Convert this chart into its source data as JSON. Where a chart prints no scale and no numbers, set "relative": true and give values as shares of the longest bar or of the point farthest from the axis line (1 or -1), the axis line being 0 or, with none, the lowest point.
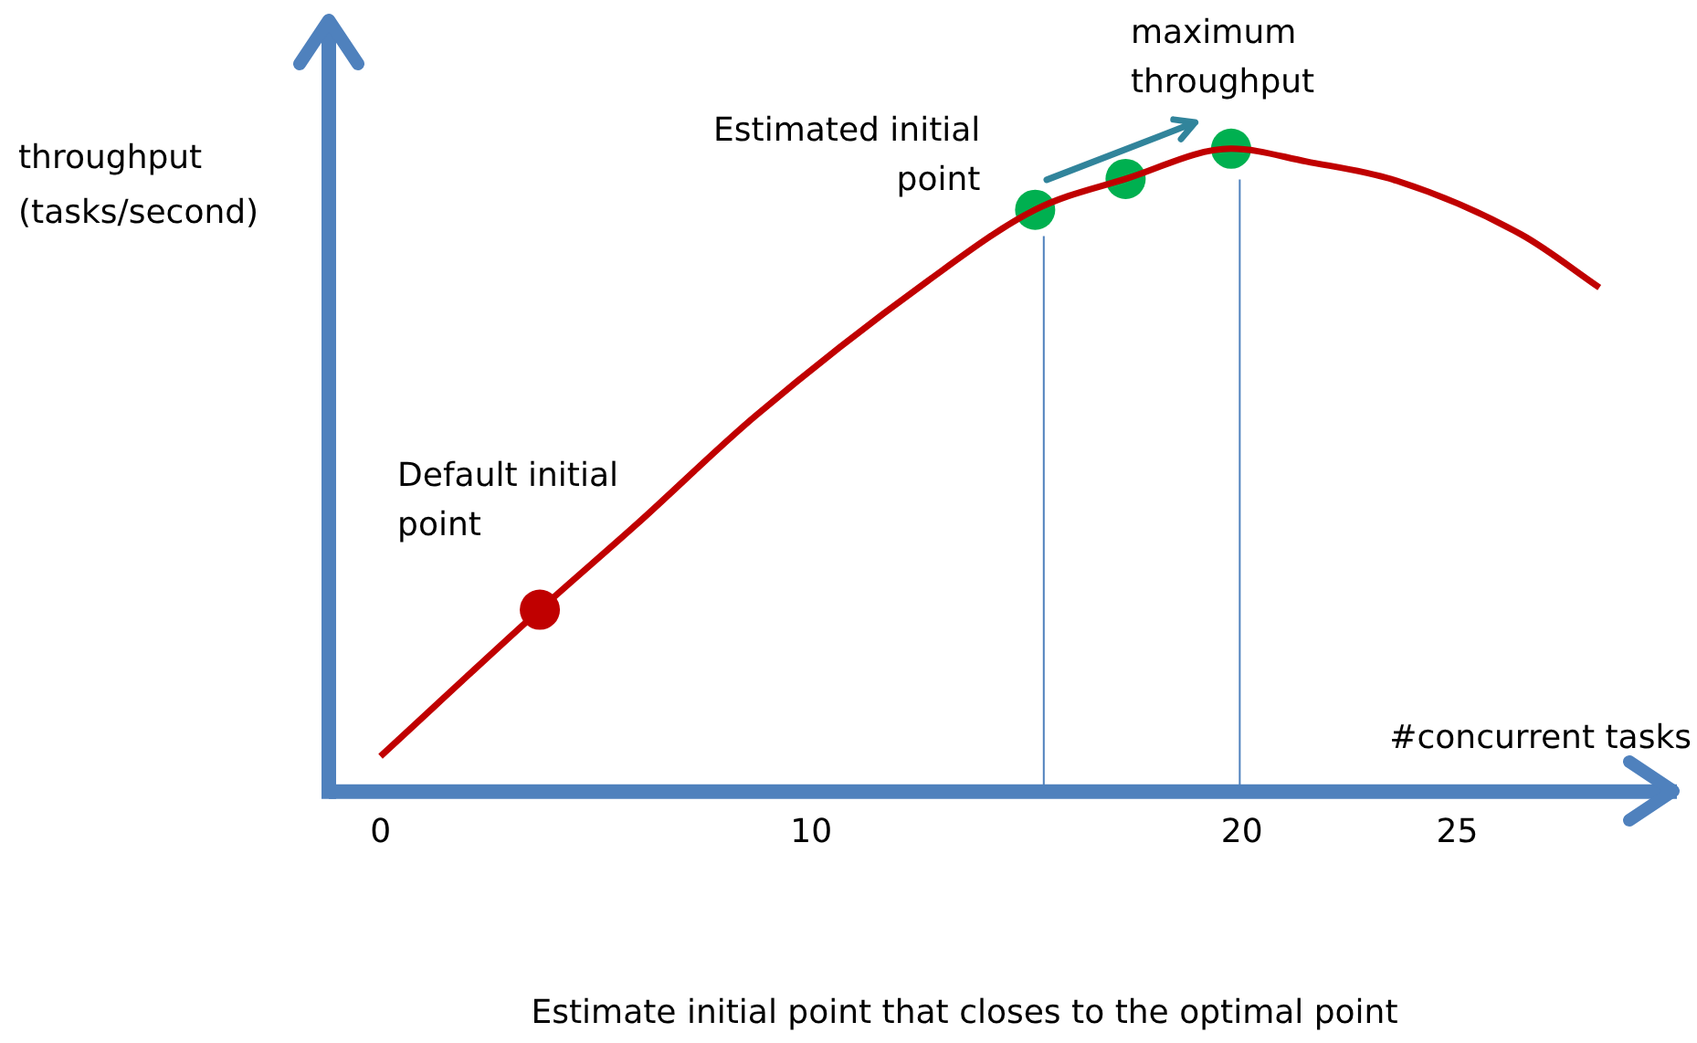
{
  "chart_data": {
    "type": "line",
    "relative": true,
    "xlabel": "#concurrent tasks",
    "ylabel": "throughput\n(tasks/second)",
    "xlim": [
      -1.2,
      30.1
    ],
    "xticks": [
      0,
      10,
      20,
      25
    ],
    "series": [
      {
        "color": "#c00000",
        "marker": "none",
        "x": [
          0,
          3.7,
          5.95,
          8.7,
          12.7,
          15.2,
          17.3,
          19.75,
          21.5,
          23.6,
          26.5,
          28.3
        ],
        "values": [
          0.055,
          0.283,
          0.416,
          0.584,
          0.794,
          0.905,
          0.953,
          1,
          0.98,
          0.95,
          0.866,
          0.784
        ]
      },
      {
        "type": "scatter",
        "color": "#c00000",
        "marker": "circle",
        "x": [
          3.7
        ],
        "values": [
          0.283
        ]
      },
      {
        "type": "scatter",
        "color": "#00b050",
        "marker": "circle",
        "x": [
          15.2,
          17.3,
          19.75
        ],
        "values": [
          0.905,
          0.953,
          1
        ]
      }
    ],
    "ref_lines": [
      {
        "axis": "x",
        "value": 15.4,
        "color": "#4f81bd"
      },
      {
        "axis": "x",
        "value": 19.95,
        "color": "#4f81bd"
      }
    ],
    "annotations": [
      {
        "text": "Default initial\npoint",
        "x": 3.7,
        "y": 0.283
      },
      {
        "text": "Estimated initial\npoint",
        "x": 15.2,
        "y": 0.905
      },
      {
        "text": "maximum\nthroughput",
        "x": 19.75,
        "y": 1
      },
      "Estimate initial point that closes to the optimal point"
    ],
    "grid": false,
    "legend": false
  }
}
